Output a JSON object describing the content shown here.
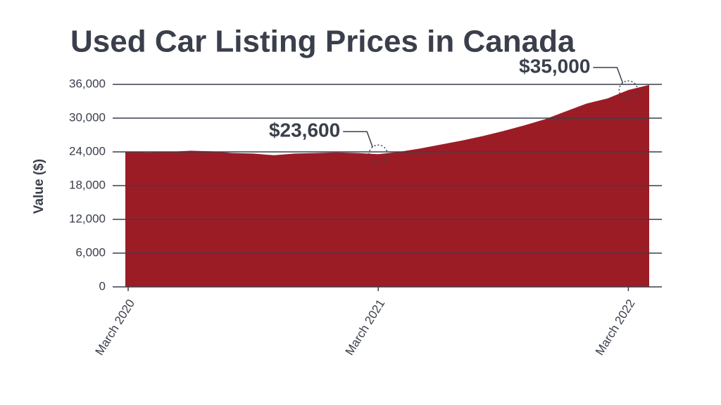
{
  "chart_data": {
    "type": "area",
    "title": "Used Car Listing Prices in Canada",
    "y_label": "Value ($)",
    "categories": [
      "March 2020",
      null,
      null,
      null,
      null,
      null,
      null,
      null,
      null,
      null,
      null,
      null,
      "March 2021",
      null,
      null,
      null,
      null,
      null,
      null,
      null,
      null,
      null,
      null,
      null,
      "March 2022",
      null
    ],
    "values": [
      24000,
      23900,
      24000,
      24200,
      24100,
      23800,
      23700,
      23400,
      23700,
      23800,
      23900,
      23800,
      23600,
      24000,
      24600,
      25300,
      26000,
      26800,
      27700,
      28700,
      29800,
      31200,
      32600,
      33500,
      35000,
      35900
    ],
    "value_labels": [
      null,
      null,
      null,
      null,
      null,
      null,
      null,
      null,
      null,
      null,
      null,
      null,
      "$23,600",
      null,
      null,
      null,
      null,
      null,
      null,
      null,
      null,
      null,
      null,
      null,
      "$35,000",
      null
    ],
    "color": "#9c1c26",
    "ylim": [
      0,
      36000
    ],
    "yticks": [
      0,
      {
        "value": 6000,
        "label": "6,000"
      },
      {
        "value": 12000,
        "label": "12,000"
      },
      {
        "value": 18000,
        "label": "18,000"
      },
      {
        "value": 24000,
        "label": "24,000"
      },
      {
        "value": 30000,
        "label": "30,000"
      },
      {
        "value": 36000,
        "label": "36,000"
      }
    ],
    "grid": true
  }
}
